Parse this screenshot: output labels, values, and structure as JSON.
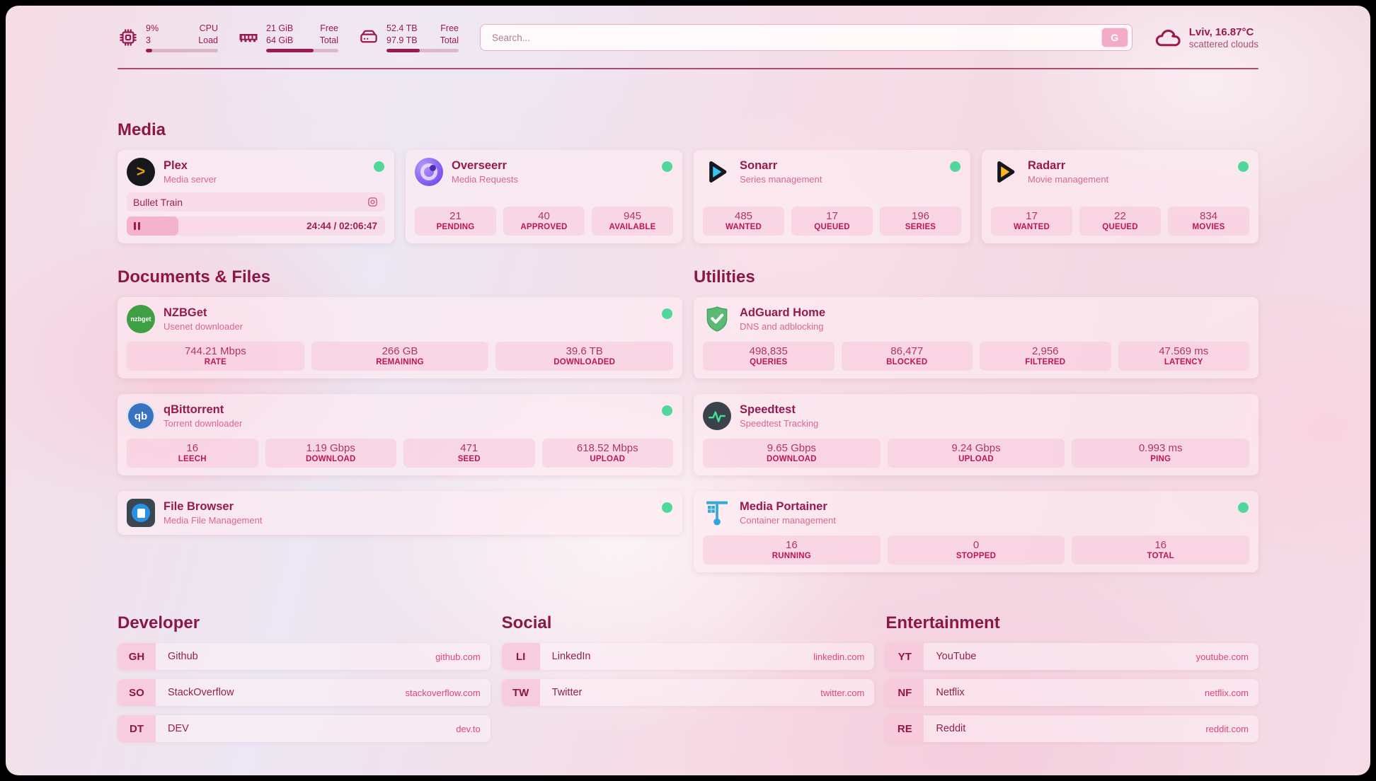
{
  "header": {
    "widgets": [
      {
        "icon": "cpu-icon",
        "col1": [
          "9%",
          "3"
        ],
        "col2": [
          "CPU",
          "Load"
        ],
        "progress": 9
      },
      {
        "icon": "ram-icon",
        "col1": [
          "21 GiB",
          "64 GiB"
        ],
        "col2": [
          "Free",
          "Total"
        ],
        "progress": 66
      },
      {
        "icon": "disk-icon",
        "col1": [
          "52.4 TB",
          "97.9 TB"
        ],
        "col2": [
          "Free",
          "Total"
        ],
        "progress": 46
      }
    ],
    "search": {
      "placeholder": "Search...",
      "button_label": "G"
    },
    "weather": {
      "icon": "cloud-icon",
      "location": "Lviv, 16.87°C",
      "condition": "scattered clouds"
    }
  },
  "groups": [
    {
      "title": "Media",
      "cards": [
        {
          "id": "plex",
          "icon": "plex-icon",
          "name": "Plex",
          "description": "Media server",
          "status_dot": true,
          "now_playing": {
            "title": "Bullet Train",
            "icon": "cast-icon",
            "time": "24:44 / 02:06:47",
            "progress": 20
          }
        },
        {
          "id": "overseerr",
          "icon": "overseerr-icon",
          "name": "Overseerr",
          "description": "Media Requests",
          "status_dot": true,
          "stats": [
            {
              "value": "21",
              "label": "PENDING"
            },
            {
              "value": "40",
              "label": "APPROVED"
            },
            {
              "value": "945",
              "label": "AVAILABLE"
            }
          ]
        },
        {
          "id": "sonarr",
          "icon": "sonarr-icon",
          "name": "Sonarr",
          "description": "Series management",
          "status_dot": true,
          "stats": [
            {
              "value": "485",
              "label": "WANTED"
            },
            {
              "value": "17",
              "label": "QUEUED"
            },
            {
              "value": "196",
              "label": "SERIES"
            }
          ]
        },
        {
          "id": "radarr",
          "icon": "radarr-icon",
          "name": "Radarr",
          "description": "Movie management",
          "status_dot": true,
          "stats": [
            {
              "value": "17",
              "label": "WANTED"
            },
            {
              "value": "22",
              "label": "QUEUED"
            },
            {
              "value": "834",
              "label": "MOVIES"
            }
          ]
        }
      ]
    },
    {
      "title": "Documents & Files",
      "cards": [
        {
          "id": "nzbget",
          "icon": "nzbget-icon",
          "icon_text": "nzbget",
          "name": "NZBGet",
          "description": "Usenet downloader",
          "status_dot": true,
          "stats": [
            {
              "value": "744.21 Mbps",
              "label": "RATE"
            },
            {
              "value": "266 GB",
              "label": "REMAINING"
            },
            {
              "value": "39.6 TB",
              "label": "DOWNLOADED"
            }
          ]
        },
        {
          "id": "qbittorrent",
          "icon": "qb-icon",
          "icon_text": "qb",
          "name": "qBittorrent",
          "description": "Torrent downloader",
          "status_dot": true,
          "stats": [
            {
              "value": "16",
              "label": "LEECH"
            },
            {
              "value": "1.19 Gbps",
              "label": "DOWNLOAD"
            },
            {
              "value": "471",
              "label": "SEED"
            },
            {
              "value": "618.52 Mbps",
              "label": "UPLOAD"
            }
          ]
        },
        {
          "id": "filebrowser",
          "icon": "filebrowser-icon",
          "name": "File Browser",
          "description": "Media File Management",
          "status_dot": true
        }
      ]
    },
    {
      "title": "Utilities",
      "cards": [
        {
          "id": "adguard",
          "icon": "adguard-icon",
          "name": "AdGuard Home",
          "description": "DNS and adblocking",
          "status_dot": false,
          "stats": [
            {
              "value": "498,835",
              "label": "QUERIES"
            },
            {
              "value": "86,477",
              "label": "BLOCKED"
            },
            {
              "value": "2,956",
              "label": "FILTERED"
            },
            {
              "value": "47.569 ms",
              "label": "LATENCY"
            }
          ]
        },
        {
          "id": "speedtest",
          "icon": "speedtest-icon",
          "name": "Speedtest",
          "description": "Speedtest Tracking",
          "status_dot": false,
          "stats": [
            {
              "value": "9.65 Gbps",
              "label": "DOWNLOAD"
            },
            {
              "value": "9.24 Gbps",
              "label": "UPLOAD"
            },
            {
              "value": "0.993 ms",
              "label": "PING"
            }
          ]
        },
        {
          "id": "portainer",
          "icon": "portainer-icon",
          "name": "Media Portainer",
          "description": "Container management",
          "status_dot": true,
          "stats": [
            {
              "value": "16",
              "label": "RUNNING"
            },
            {
              "value": "0",
              "label": "STOPPED"
            },
            {
              "value": "16",
              "label": "TOTAL"
            }
          ]
        }
      ]
    }
  ],
  "bookmarks": [
    {
      "title": "Developer",
      "items": [
        {
          "abbr": "GH",
          "name": "Github",
          "url": "github.com"
        },
        {
          "abbr": "SO",
          "name": "StackOverflow",
          "url": "stackoverflow.com"
        },
        {
          "abbr": "DT",
          "name": "DEV",
          "url": "dev.to"
        }
      ]
    },
    {
      "title": "Social",
      "items": [
        {
          "abbr": "LI",
          "name": "LinkedIn",
          "url": "linkedin.com"
        },
        {
          "abbr": "TW",
          "name": "Twitter",
          "url": "twitter.com"
        }
      ]
    },
    {
      "title": "Entertainment",
      "items": [
        {
          "abbr": "YT",
          "name": "YouTube",
          "url": "youtube.com"
        },
        {
          "abbr": "NF",
          "name": "Netflix",
          "url": "netflix.com"
        },
        {
          "abbr": "RE",
          "name": "Reddit",
          "url": "reddit.com"
        }
      ]
    }
  ],
  "theme": {
    "accent": "#9c1850",
    "status_green": "#51d79a",
    "pill_label": "#c01458"
  }
}
